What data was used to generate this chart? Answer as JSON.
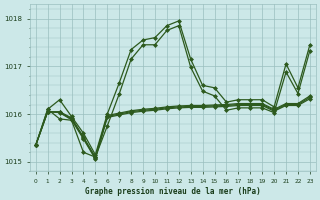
{
  "xlabel": "Graphe pression niveau de la mer (hPa)",
  "hours": [
    0,
    1,
    2,
    3,
    4,
    5,
    6,
    7,
    8,
    9,
    10,
    11,
    12,
    13,
    14,
    15,
    16,
    17,
    18,
    19,
    20,
    21,
    22,
    23
  ],
  "ylim": [
    1014.8,
    1018.3
  ],
  "yticks": [
    1015,
    1016,
    1017,
    1018
  ],
  "xlim": [
    -0.5,
    23.5
  ],
  "bg_color": "#cce8e8",
  "grid_color": "#9bbfbf",
  "line_color": "#2d5a1e",
  "label_color": "#1a3d1a",
  "line_high": [
    1015.35,
    1016.1,
    1016.3,
    1015.95,
    1015.6,
    1015.15,
    1016.0,
    1016.65,
    1017.35,
    1017.55,
    1017.6,
    1017.85,
    1017.95,
    1017.15,
    1016.6,
    1016.55,
    1016.25,
    1016.3,
    1016.3,
    1016.3,
    1016.15,
    1017.05,
    1016.55,
    1017.45
  ],
  "line_flat1": [
    1015.35,
    1016.05,
    1016.05,
    1015.92,
    1015.52,
    1015.1,
    1015.97,
    1016.02,
    1016.07,
    1016.1,
    1016.12,
    1016.15,
    1016.17,
    1016.18,
    1016.18,
    1016.19,
    1016.2,
    1016.22,
    1016.22,
    1016.22,
    1016.1,
    1016.22,
    1016.22,
    1016.38
  ],
  "line_flat2": [
    1015.35,
    1016.05,
    1016.04,
    1015.9,
    1015.5,
    1015.08,
    1015.95,
    1016.0,
    1016.05,
    1016.08,
    1016.1,
    1016.13,
    1016.15,
    1016.16,
    1016.16,
    1016.17,
    1016.18,
    1016.2,
    1016.2,
    1016.2,
    1016.08,
    1016.2,
    1016.2,
    1016.35
  ],
  "line_flat3": [
    1015.35,
    1016.05,
    1016.03,
    1015.88,
    1015.48,
    1015.06,
    1015.93,
    1015.98,
    1016.03,
    1016.06,
    1016.08,
    1016.11,
    1016.13,
    1016.14,
    1016.14,
    1016.15,
    1016.16,
    1016.18,
    1016.18,
    1016.18,
    1016.06,
    1016.18,
    1016.18,
    1016.32
  ],
  "line_zigzag": [
    1015.35,
    1016.1,
    1015.9,
    1015.87,
    1015.2,
    1015.1,
    1015.75,
    1016.42,
    1017.15,
    1017.45,
    1017.45,
    1017.75,
    1017.85,
    1016.98,
    1016.48,
    1016.38,
    1016.08,
    1016.13,
    1016.13,
    1016.13,
    1016.03,
    1016.88,
    1016.43,
    1017.33
  ]
}
